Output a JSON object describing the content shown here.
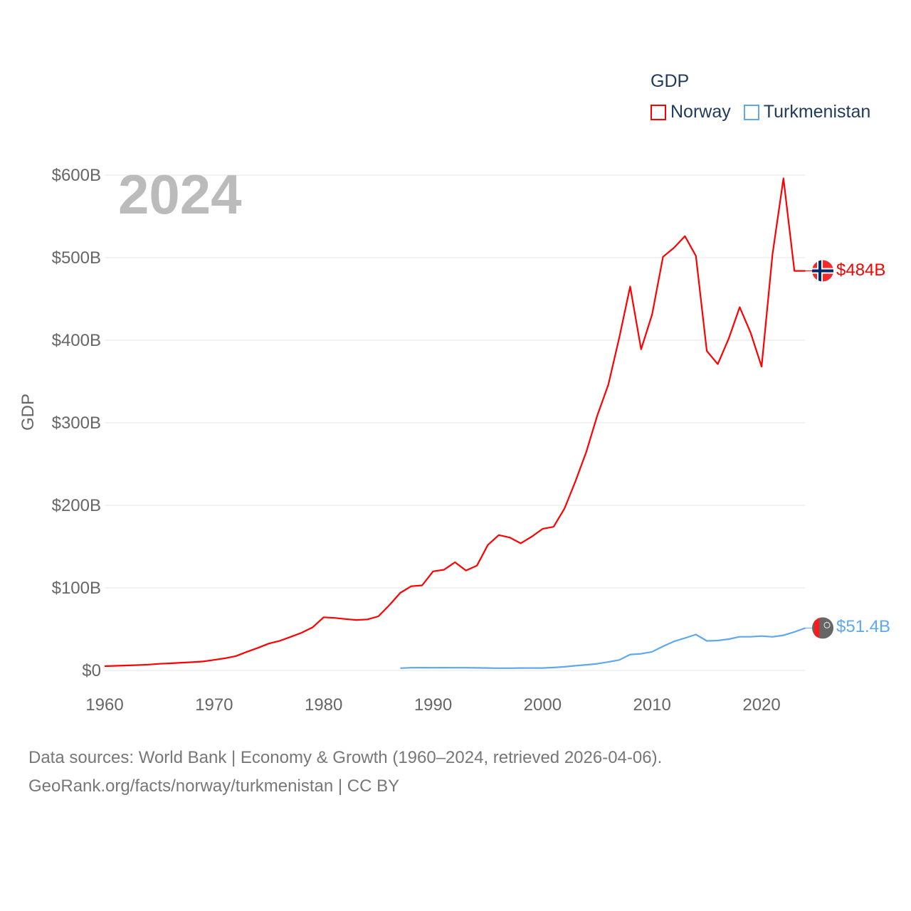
{
  "legend": {
    "title": "GDP",
    "items": [
      {
        "label": "Norway",
        "color": "#ff0000"
      },
      {
        "label": "Turkmenistan",
        "color": "#5da8ee"
      }
    ]
  },
  "year_label": "2024",
  "end_labels": {
    "norway": "$484B",
    "turkmenistan": "$51.4B"
  },
  "footer": {
    "line1": "Data sources: World Bank | Economy & Growth (1960–2024, retrieved 2026-04-06).",
    "line2": "GeoRank.org/facts/norway/turkmenistan | CC BY"
  },
  "chart_data": {
    "type": "line",
    "title": "GDP",
    "xlabel": "",
    "ylabel": "GDP",
    "xlim": [
      1960,
      2024
    ],
    "ylim": [
      0,
      600
    ],
    "units": "billion USD",
    "x_ticks": [
      "1960",
      "1970",
      "1980",
      "1990",
      "2000",
      "2010",
      "2020"
    ],
    "y_ticks": [
      "$0",
      "$100B",
      "$200B",
      "$300B",
      "$400B",
      "$500B",
      "$600B"
    ],
    "grid": true,
    "legend_position": "top-right",
    "series": [
      {
        "name": "Norway",
        "color": "#ff0000",
        "start_year": 1960,
        "values": [
          5.2,
          5.6,
          6.0,
          6.5,
          7.1,
          8.0,
          8.6,
          9.4,
          10.0,
          10.9,
          12.8,
          14.7,
          17.4,
          22.6,
          27.3,
          32.6,
          35.9,
          40.7,
          45.7,
          52.2,
          64.4,
          63.6,
          62.2,
          61.1,
          61.8,
          65.5,
          79,
          94,
          102,
          103,
          120,
          122,
          131,
          121,
          127,
          152,
          164,
          161,
          154,
          162,
          171.5,
          174,
          196,
          229,
          265,
          309,
          346,
          403,
          465,
          389,
          431,
          501,
          512,
          526,
          502,
          387,
          371,
          402,
          440,
          409,
          368,
          504,
          596,
          484,
          484
        ]
      },
      {
        "name": "Turkmenistan",
        "color": "#5da8ee",
        "start_year": 1987,
        "values": [
          2.8,
          3.3,
          3.4,
          3.3,
          3.4,
          3.3,
          3.3,
          3.1,
          2.9,
          2.8,
          2.8,
          2.9,
          2.9,
          2.9,
          3.5,
          4.4,
          5.7,
          6.8,
          8.1,
          10.3,
          12.7,
          19.3,
          20.2,
          22.6,
          29.2,
          35.2,
          39.2,
          43.5,
          35.8,
          36.2,
          37.9,
          40.8,
          40.8,
          41.6,
          40.7,
          42.6,
          46.6,
          51.4
        ]
      }
    ]
  }
}
